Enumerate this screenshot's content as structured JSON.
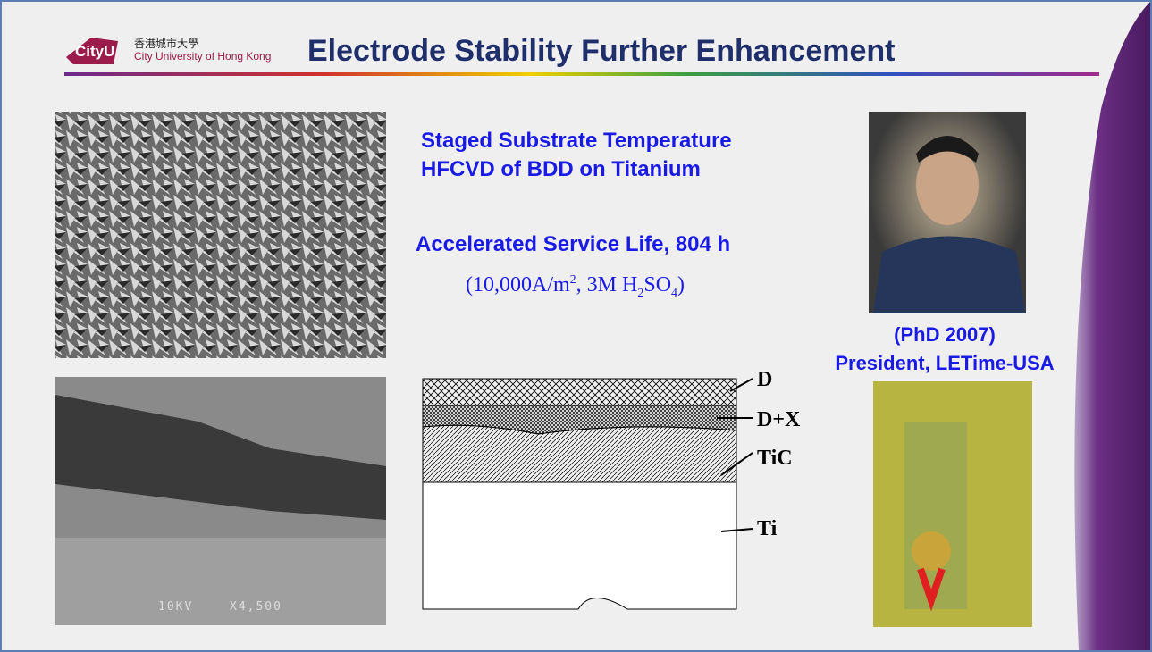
{
  "logo": {
    "mark": "CityU",
    "chinese": "香港城市大學",
    "english": "City University of Hong Kong"
  },
  "title": "Electrode Stability Further Enhancement",
  "headline": [
    "Staged Substrate Temperature",
    "HFCVD of BDD on Titanium"
  ],
  "service_life": "Accelerated Service Life, 804 h",
  "conditions": {
    "open": "(10,000A/m",
    "sup": "2",
    "mid": ", 3M H",
    "sub1": "2",
    "so": "SO",
    "sub2": "4",
    "close": ")"
  },
  "sem_bottom": {
    "voltage": "10KV",
    "magnification": "X4,500"
  },
  "layers": [
    "D",
    "D+X",
    "TiC",
    "Ti"
  ],
  "person": {
    "degree": "(PhD 2007)",
    "role": "President, LETime-USA"
  }
}
